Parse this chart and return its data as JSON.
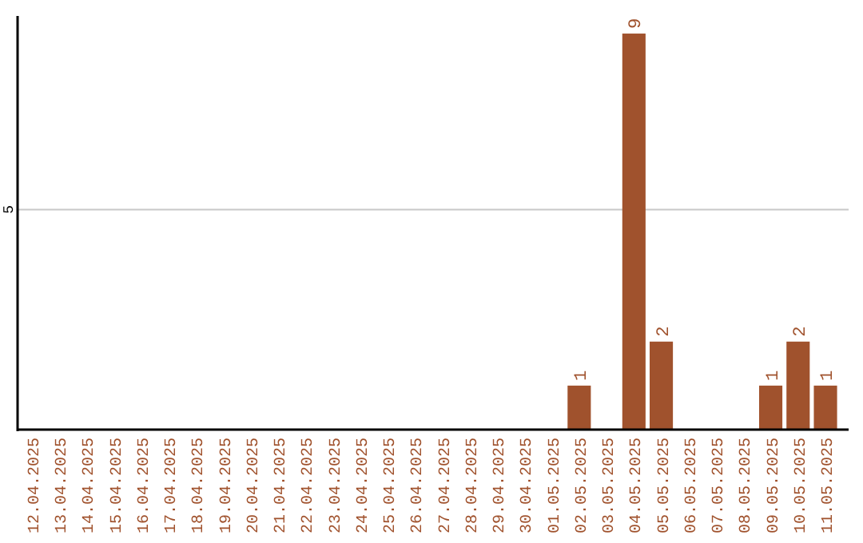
{
  "chart_data": {
    "type": "bar",
    "categories": [
      "12.04.2025",
      "13.04.2025",
      "14.04.2025",
      "15.04.2025",
      "16.04.2025",
      "17.04.2025",
      "18.04.2025",
      "19.04.2025",
      "20.04.2025",
      "21.04.2025",
      "22.04.2025",
      "23.04.2025",
      "24.04.2025",
      "25.04.2025",
      "26.04.2025",
      "27.04.2025",
      "28.04.2025",
      "29.04.2025",
      "30.04.2025",
      "01.05.2025",
      "02.05.2025",
      "03.05.2025",
      "04.05.2025",
      "05.05.2025",
      "06.05.2025",
      "07.05.2025",
      "08.05.2025",
      "09.05.2025",
      "10.05.2025",
      "11.05.2025"
    ],
    "values": [
      null,
      null,
      null,
      null,
      null,
      null,
      null,
      null,
      null,
      null,
      null,
      null,
      null,
      null,
      null,
      null,
      null,
      null,
      null,
      null,
      1,
      null,
      9,
      2,
      null,
      null,
      null,
      1,
      2,
      1
    ],
    "color": "#a0522d",
    "ylim": [
      0,
      9.4
    ],
    "yticks": [
      5
    ],
    "grid": "y",
    "data_labels": true
  }
}
